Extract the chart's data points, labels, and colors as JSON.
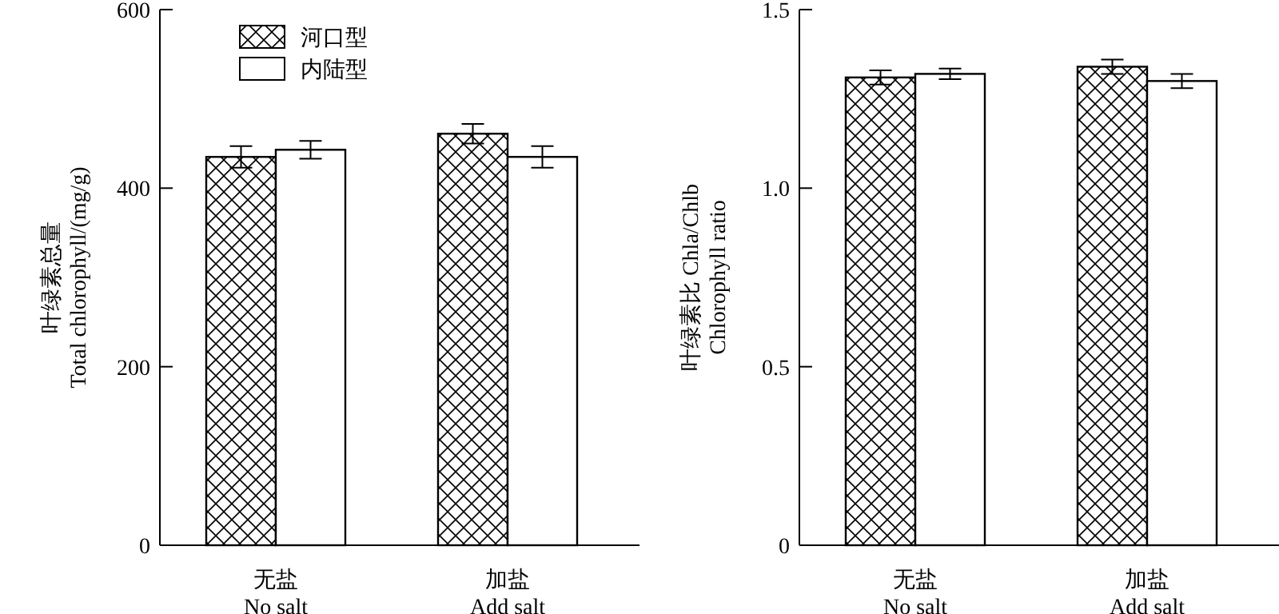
{
  "chart_data": [
    {
      "type": "bar",
      "categories": [
        "无盐\nNo salt",
        "加盐\nAdd salt"
      ],
      "ylabel": "叶绿素总量\nTotal chlorophyll/(mg/g)",
      "ylim": [
        0,
        600
      ],
      "yticks": [
        0,
        200,
        400,
        600
      ],
      "legend": "top left",
      "series": [
        {
          "name": "河口型",
          "color": "#000000",
          "values": [
            435,
            461
          ],
          "errors": [
            12,
            11
          ]
        },
        {
          "name": "内陆型",
          "color": "#ffffff",
          "values": [
            443,
            435
          ],
          "errors": [
            10,
            12
          ]
        }
      ]
    },
    {
      "type": "bar",
      "categories": [
        "无盐\nNo salt",
        "加盐\nAdd salt"
      ],
      "ylabel": "叶绿素比 Chla/Chlb\nChlorophyll ratio",
      "ylim": [
        0,
        1.5
      ],
      "yticks": [
        0,
        0.5,
        {
          "value": 1,
          "label": "1.0"
        },
        1.5
      ],
      "series": [
        {
          "color": "#000000",
          "values": [
            1.31,
            1.34
          ],
          "errors": [
            0.02,
            0.02
          ]
        },
        {
          "color": "#ffffff",
          "values": [
            1.32,
            1.3
          ],
          "errors": [
            0.015,
            0.02
          ]
        }
      ]
    }
  ]
}
